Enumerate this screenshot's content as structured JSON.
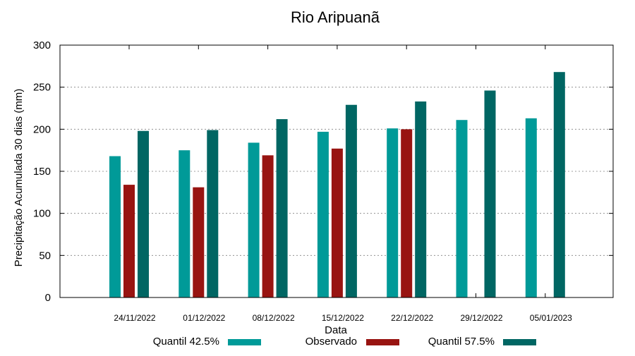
{
  "chart_data": {
    "type": "bar",
    "title": "Rio Aripuanã",
    "xlabel": "Data",
    "ylabel": "Precipitação Acumulada 30 dias (mm)",
    "ylim": [
      0,
      300
    ],
    "yticks": [
      "0",
      "50",
      "100",
      "150",
      "200",
      "250",
      "300"
    ],
    "grid": true,
    "legend_position": "bottom",
    "categories": [
      "24/11/2022",
      "01/12/2022",
      "08/12/2022",
      "15/12/2022",
      "22/12/2022",
      "29/12/2022",
      "05/01/2023"
    ],
    "series": [
      {
        "name": "Quantil 42.5%",
        "color": "#009a98",
        "values": [
          168,
          175,
          184,
          197,
          201,
          211,
          213
        ]
      },
      {
        "name": "Observado",
        "color": "#981411",
        "values": [
          134,
          131,
          169,
          177,
          200,
          null,
          null
        ]
      },
      {
        "name": "Quantil 57.5%",
        "color": "#006663",
        "values": [
          198,
          199,
          212,
          229,
          233,
          246,
          268
        ]
      }
    ]
  }
}
